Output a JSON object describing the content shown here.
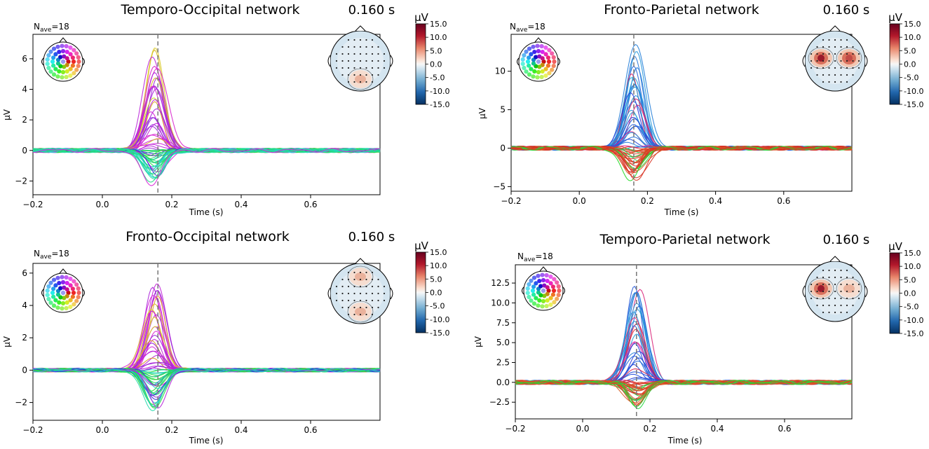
{
  "time_label": "0.160 s",
  "nave_prefix": "N",
  "nave_sub": "ave",
  "nave_value": "=18",
  "colorbar": {
    "unit": "µV",
    "ticks": [
      "15.0",
      "10.0",
      "5.0",
      "0.0",
      "-5.0",
      "-10.0",
      "-15.0"
    ]
  },
  "chart_data": [
    {
      "type": "line",
      "title": "Temporo-Occipital network",
      "xlabel": "Time (s)",
      "ylabel": "µV",
      "xlim": [
        -0.2,
        0.8
      ],
      "ylim": [
        -2.9,
        7.6
      ],
      "xticks": [
        -0.2,
        0.0,
        0.2,
        0.4,
        0.6
      ],
      "xtick_labels": [
        "−0.2",
        "0.0",
        "0.2",
        "0.4",
        "0.6"
      ],
      "yticks": [
        -2,
        0,
        2,
        4,
        6
      ],
      "ytick_labels": [
        "−2",
        "0",
        "2",
        "4",
        "6"
      ],
      "marker_time": 0.16,
      "peak_time": 0.15,
      "trace_count": 60,
      "amplitude_range": [
        -2.4,
        7.2
      ],
      "topomap_hotspots": [
        {
          "region": "occipital",
          "level": 0.45
        }
      ]
    },
    {
      "type": "line",
      "title": "Fronto-Parietal network",
      "xlabel": "Time (s)",
      "ylabel": "µV",
      "xlim": [
        -0.2,
        0.8
      ],
      "ylim": [
        -5.6,
        14.8
      ],
      "xticks": [
        -0.2,
        0.0,
        0.2,
        0.4,
        0.6
      ],
      "xtick_labels": [
        "−0.2",
        "0.0",
        "0.2",
        "0.4",
        "0.6"
      ],
      "yticks": [
        -5,
        0,
        5,
        10
      ],
      "ytick_labels": [
        "−5",
        "0",
        "5",
        "10"
      ],
      "marker_time": 0.16,
      "peak_time": 0.16,
      "trace_count": 60,
      "amplitude_range": [
        -4.5,
        13.8
      ],
      "topomap_hotspots": [
        {
          "region": "left-parietal",
          "level": 0.95
        },
        {
          "region": "right-parietal",
          "level": 0.75
        }
      ]
    },
    {
      "type": "line",
      "title": "Fronto-Occipital network",
      "xlabel": "Time (s)",
      "ylabel": "µV",
      "xlim": [
        -0.2,
        0.8
      ],
      "ylim": [
        -3.1,
        6.6
      ],
      "xticks": [
        -0.2,
        0.0,
        0.2,
        0.4,
        0.6
      ],
      "xtick_labels": [
        "−0.2",
        "0.0",
        "0.2",
        "0.4",
        "0.6"
      ],
      "yticks": [
        -2,
        0,
        2,
        4,
        6
      ],
      "ytick_labels": [
        "−2",
        "0",
        "2",
        "4",
        "6"
      ],
      "marker_time": 0.16,
      "peak_time": 0.15,
      "trace_count": 60,
      "amplitude_range": [
        -2.8,
        6.0
      ],
      "topomap_hotspots": [
        {
          "region": "frontal",
          "level": 0.3
        },
        {
          "region": "occipital",
          "level": 0.4
        }
      ]
    },
    {
      "type": "line",
      "title": "Temporo-Parietal network",
      "xlabel": "Time (s)",
      "ylabel": "µV",
      "xlim": [
        -0.2,
        0.8
      ],
      "ylim": [
        -4.6,
        14.8
      ],
      "xticks": [
        -0.2,
        0.0,
        0.2,
        0.4,
        0.6
      ],
      "xtick_labels": [
        "−0.2",
        "0.0",
        "0.2",
        "0.4",
        "0.6"
      ],
      "yticks": [
        -2.5,
        0.0,
        2.5,
        5.0,
        7.5,
        10.0,
        12.5
      ],
      "ytick_labels": [
        "−2.5",
        "0.0",
        "2.5",
        "5.0",
        "7.5",
        "10.0",
        "12.5"
      ],
      "marker_time": 0.16,
      "peak_time": 0.16,
      "trace_count": 60,
      "amplitude_range": [
        -3.5,
        14.0
      ],
      "topomap_hotspots": [
        {
          "region": "left-parietal",
          "level": 0.9
        },
        {
          "region": "right-parietal",
          "level": 0.6
        }
      ]
    }
  ]
}
